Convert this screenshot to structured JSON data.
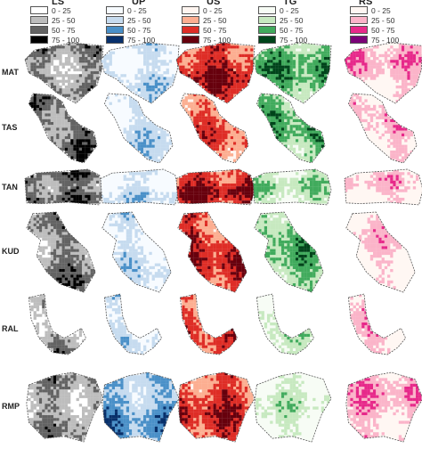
{
  "columns": [
    {
      "key": "LS",
      "label": "LS",
      "colors": [
        "#ffffff",
        "#bdbdbd",
        "#636363",
        "#000000"
      ]
    },
    {
      "key": "UP",
      "label": "UP",
      "colors": [
        "#f7fbff",
        "#c6dbef",
        "#4a90c8",
        "#08306b"
      ]
    },
    {
      "key": "US",
      "label": "US",
      "colors": [
        "#fff5f0",
        "#fcae91",
        "#de2d26",
        "#67000d"
      ]
    },
    {
      "key": "TG",
      "label": "TG",
      "colors": [
        "#f7fcf5",
        "#c7e9c0",
        "#41ab5d",
        "#00441b"
      ]
    },
    {
      "key": "RS",
      "label": "RS",
      "colors": [
        "#fff7f3",
        "#fbb4c9",
        "#e7298a",
        "#7a0177"
      ]
    }
  ],
  "legend_ranges": [
    "0 - 25",
    "25 - 50",
    "50 - 75",
    "75 - 100"
  ],
  "rows": [
    "MAT",
    "TAS",
    "TAN",
    "KUD",
    "RAL",
    "RMP"
  ]
}
